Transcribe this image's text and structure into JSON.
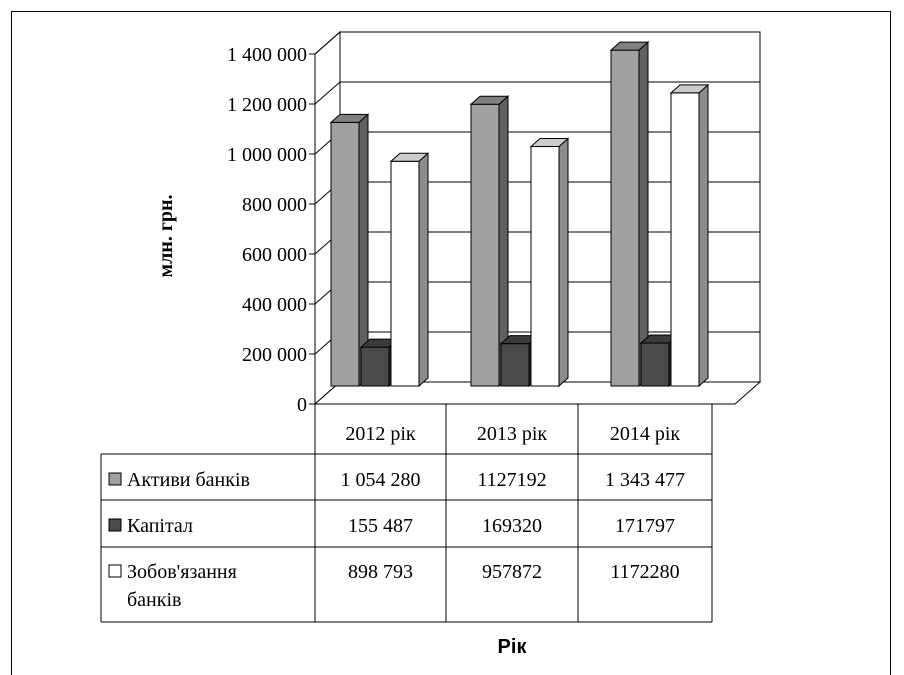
{
  "chart_data": {
    "type": "bar",
    "title": "",
    "xlabel": "Рік",
    "ylabel": "млн. грн.",
    "ylim": [
      0,
      1400000
    ],
    "ytick_values": [
      0,
      200000,
      400000,
      600000,
      800000,
      1000000,
      1200000,
      1400000
    ],
    "ytick_labels": [
      "0",
      "200 000",
      "400 000",
      "600 000",
      "800 000",
      "1 000 000",
      "1 200 000",
      "1 400 000"
    ],
    "grid": true,
    "legend": "data-table",
    "categories": [
      "2012 рік",
      "2013 рік",
      "2014 рік"
    ],
    "series": [
      {
        "name": "Активи банків",
        "values": [
          1054280,
          1127192,
          1343477
        ],
        "labels": [
          "1 054 280",
          "1127192",
          "1 343 477"
        ],
        "color": "#a0a0a0"
      },
      {
        "name": "Капітал",
        "values": [
          155487,
          169320,
          171797
        ],
        "labels": [
          "155 487",
          "169320",
          "171797"
        ],
        "color": "#4a4a4a"
      },
      {
        "name": "Зобов'язання банків",
        "name_lines": [
          "Зобов'язання",
          "банків"
        ],
        "values": [
          898793,
          957872,
          1172280
        ],
        "labels": [
          "898 793",
          "957872",
          "1172280"
        ],
        "color": "#ffffff"
      }
    ]
  }
}
